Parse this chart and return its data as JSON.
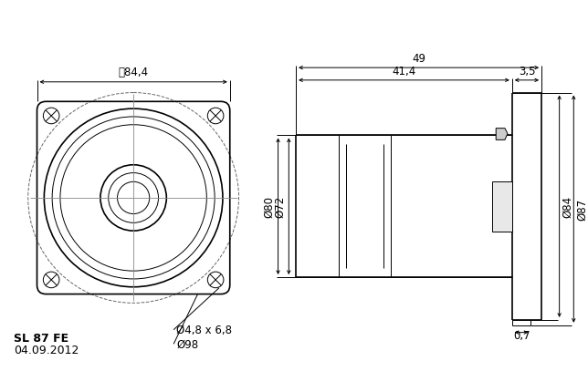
{
  "bg_color": "#ffffff",
  "line_color": "#000000",
  "font_size_dim": 8.5,
  "font_size_title": 8,
  "title_line1": "SL 87 FE",
  "title_line2": "04.09.2012",
  "dim_84_4": "84,4",
  "dim_49": "49",
  "dim_41_4": "41,4",
  "dim_3_5": "3,5",
  "dim_80": "Ø80",
  "dim_72": "Ø72",
  "dim_84": "Ø84",
  "dim_87": "Ø87",
  "dim_0_7": "0,7",
  "dim_4_8": "Ø4,8 x 6,8",
  "dim_98": "Ø98"
}
